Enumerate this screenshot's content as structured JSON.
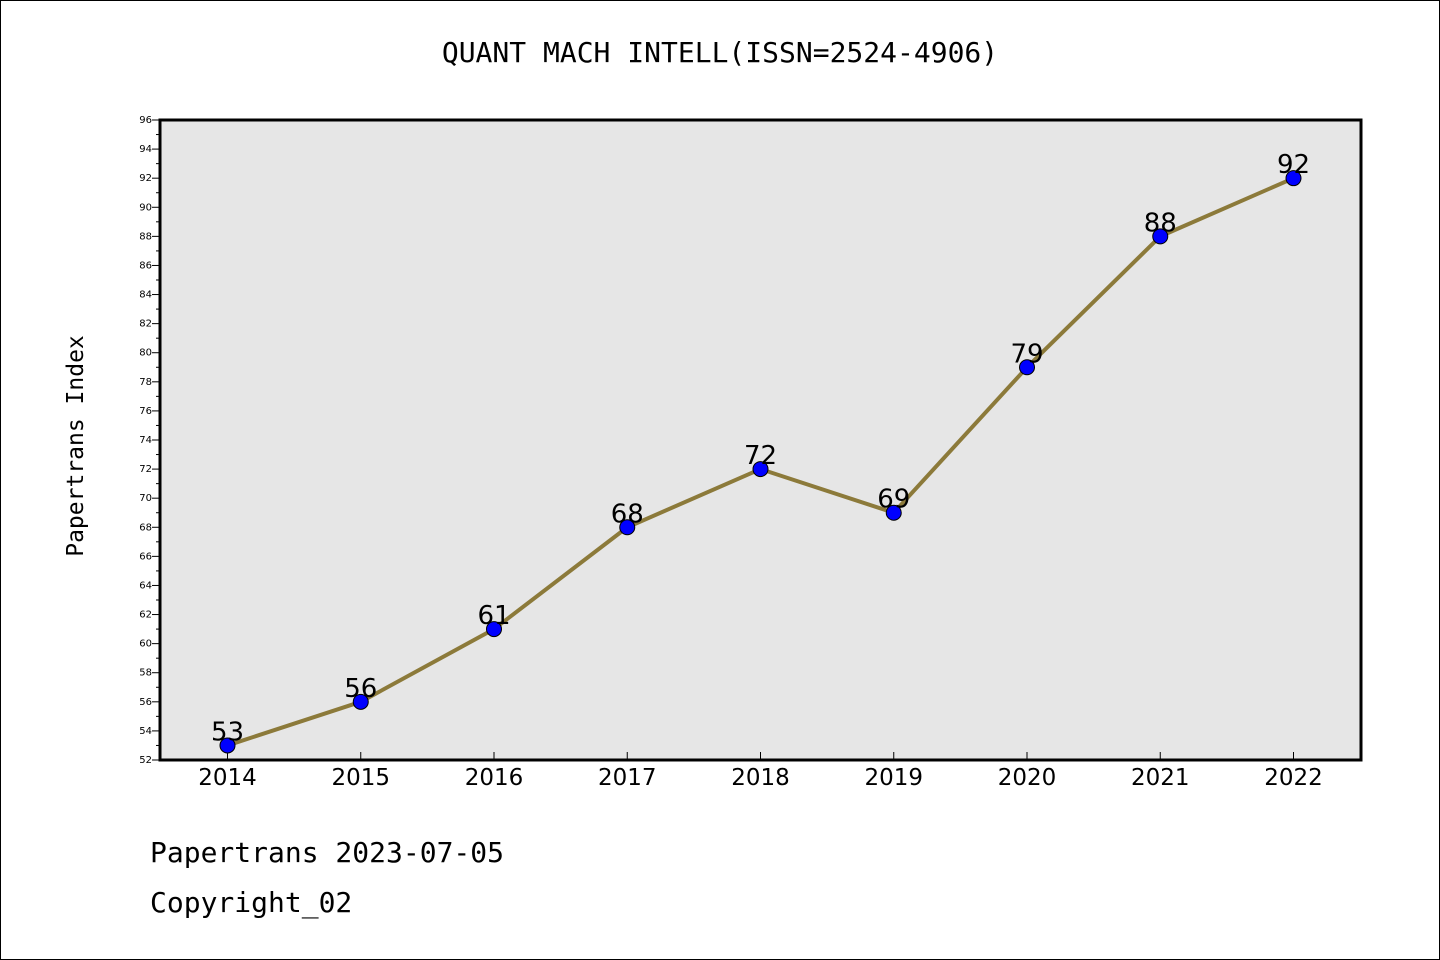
{
  "chart_data": {
    "type": "line",
    "title": "QUANT MACH INTELL(ISSN=2524-4906)",
    "ylabel": "Papertrans Index",
    "xlabel": "",
    "categories": [
      "2014",
      "2015",
      "2016",
      "2017",
      "2018",
      "2019",
      "2020",
      "2021",
      "2022"
    ],
    "series": [
      {
        "values": [
          53,
          56,
          61,
          68,
          72,
          69,
          79,
          88,
          92
        ]
      }
    ],
    "ylim": [
      52,
      96
    ],
    "yticks": [
      52,
      54,
      56,
      58,
      60,
      62,
      64,
      66,
      68,
      70,
      72,
      74,
      76,
      78,
      80,
      82,
      84,
      86,
      88,
      90,
      92,
      94,
      96
    ],
    "data_labels": true,
    "grid": false,
    "legend": "none",
    "colors": {
      "line": "#8c7a3a",
      "marker": "#0000ff",
      "plot_background": "#e6e6e6",
      "axes": "#000000"
    }
  },
  "footer": {
    "date_line": "Papertrans 2023-07-05",
    "copyright": "Copyright_02"
  }
}
